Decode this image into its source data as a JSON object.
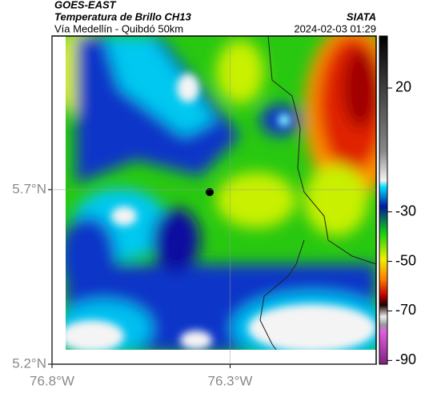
{
  "header": {
    "source": "GOES-EAST",
    "title": "Temperatura de Brillo CH13",
    "subtitle": "Vía Medellín - Quibdó 50km",
    "credit": "SIATA",
    "timestamp": "2024-02-03 01:29"
  },
  "map": {
    "lat_range": [
      5.2,
      6.14
    ],
    "lon_range": [
      -76.8,
      -75.89
    ],
    "lat_ticks": [
      {
        "value": 5.7,
        "label": "5.7°N"
      },
      {
        "value": 5.2,
        "label": "5.2°N"
      }
    ],
    "lon_ticks": [
      {
        "value": -76.8,
        "label": "76.8°W"
      },
      {
        "value": -76.3,
        "label": "76.3°W"
      }
    ],
    "grid": true
  },
  "colorbar": {
    "clim": [
      41,
      -91.5
    ],
    "ticks": [
      20,
      -30,
      -50,
      -70,
      -90
    ]
  }
}
